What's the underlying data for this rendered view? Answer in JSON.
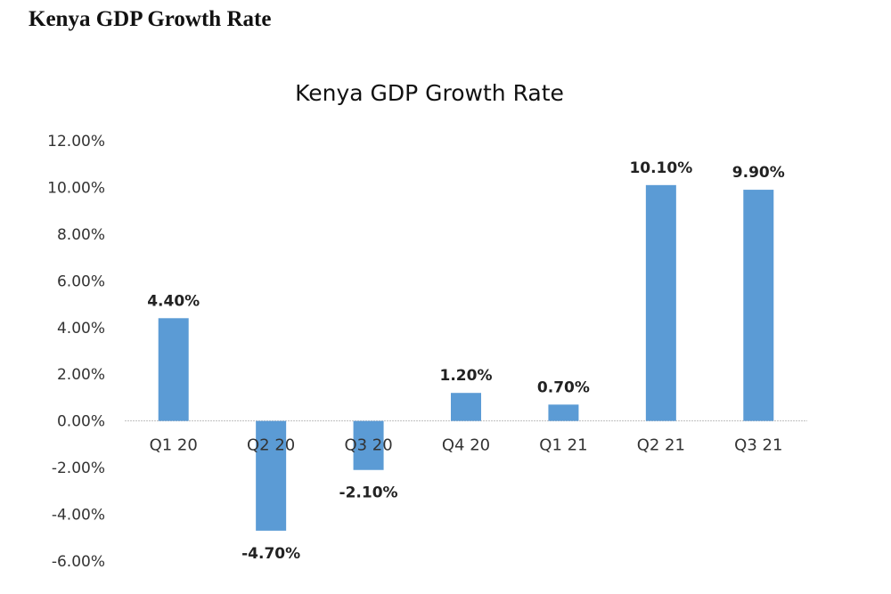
{
  "page": {
    "heading": "Kenya GDP Growth Rate"
  },
  "chart_data": {
    "type": "bar",
    "title": "Kenya GDP Growth Rate",
    "xlabel": "",
    "ylabel": "",
    "categories": [
      "Q1 20",
      "Q2 20",
      "Q3 20",
      "Q4 20",
      "Q1 21",
      "Q2 21",
      "Q3 21"
    ],
    "values": [
      4.4,
      -4.7,
      -2.1,
      1.2,
      0.7,
      10.1,
      9.9
    ],
    "data_labels": [
      "4.40%",
      "-4.70%",
      "-2.10%",
      "1.20%",
      "0.70%",
      "10.10%",
      "9.90%"
    ],
    "ylim": [
      -6,
      12
    ],
    "yticks": [
      12,
      10,
      8,
      6,
      4,
      2,
      0,
      -2,
      -4,
      -6
    ],
    "ytick_labels": [
      "12.00%",
      "10.00%",
      "8.00%",
      "6.00%",
      "4.00%",
      "2.00%",
      "0.00%",
      "-2.00%",
      "-4.00%",
      "-6.00%"
    ],
    "grid": false,
    "legend": "none",
    "bar_color": "#5b9bd5",
    "zero_line_color": "#bfbfbf"
  }
}
